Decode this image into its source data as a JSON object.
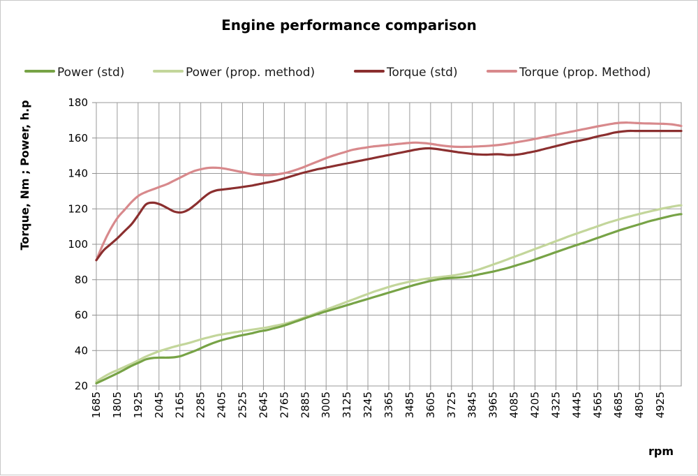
{
  "chart_data": {
    "type": "line",
    "title": "Engine performance comparison",
    "xlabel": "rpm",
    "ylabel": "Torque, Nm ; Power, h.p",
    "ylim": [
      20,
      180
    ],
    "yticks": [
      20,
      40,
      60,
      80,
      100,
      120,
      140,
      160,
      180
    ],
    "grid": true,
    "legend_position": "top",
    "x": [
      1685,
      1725,
      1765,
      1805,
      1845,
      1885,
      1925,
      1965,
      2005,
      2045,
      2085,
      2125,
      2165,
      2205,
      2245,
      2285,
      2325,
      2365,
      2405,
      2445,
      2485,
      2525,
      2565,
      2605,
      2645,
      2685,
      2725,
      2765,
      2805,
      2845,
      2885,
      2925,
      2965,
      3005,
      3045,
      3085,
      3125,
      3165,
      3205,
      3245,
      3285,
      3325,
      3365,
      3405,
      3445,
      3485,
      3525,
      3565,
      3605,
      3645,
      3685,
      3725,
      3765,
      3805,
      3845,
      3885,
      3925,
      3965,
      4005,
      4045,
      4085,
      4125,
      4165,
      4205,
      4245,
      4285,
      4325,
      4365,
      4405,
      4445,
      4485,
      4525,
      4565,
      4605,
      4645,
      4685,
      4725,
      4765,
      4805,
      4845,
      4885,
      4925,
      4965,
      4985
    ],
    "x_tick_labels": [
      "1685",
      "1805",
      "1925",
      "2045",
      "2165",
      "2285",
      "2405",
      "2525",
      "2645",
      "2765",
      "2885",
      "3005",
      "3125",
      "3245",
      "3365",
      "3485",
      "3605",
      "3725",
      "3845",
      "3965",
      "4085",
      "4205",
      "4325",
      "4445",
      "4565",
      "4685",
      "4805",
      "4925"
    ],
    "series": [
      {
        "name": "Power (std)",
        "color": "#77a346",
        "values": [
          21.5,
          23.4,
          25.3,
          27.2,
          29.3,
          31.4,
          33.2,
          35.0,
          35.8,
          36.0,
          36.0,
          36.2,
          37.0,
          38.5,
          40.0,
          41.8,
          43.5,
          45.0,
          46.2,
          47.2,
          48.2,
          49.0,
          49.8,
          50.8,
          51.5,
          52.5,
          53.5,
          54.8,
          56.2,
          57.6,
          59.0,
          60.3,
          61.6,
          62.8,
          64.0,
          65.2,
          66.4,
          67.6,
          68.8,
          70.0,
          71.2,
          72.4,
          73.6,
          74.8,
          76.0,
          77.2,
          78.2,
          79.2,
          80.0,
          80.6,
          81.0,
          81.2,
          81.6,
          82.2,
          83.0,
          83.8,
          84.6,
          85.6,
          86.6,
          87.8,
          89.0,
          90.2,
          91.6,
          93.0,
          94.4,
          95.8,
          97.2,
          98.6,
          99.9,
          101.2,
          102.6,
          104.0,
          105.4,
          106.8,
          108.2,
          109.4,
          110.6,
          111.8,
          113.0,
          114.0,
          115.0,
          116.0,
          116.8,
          117.0
        ]
      },
      {
        "name": "Power (prop. method)",
        "color": "#c3d69b",
        "values": [
          22.5,
          25.0,
          27.2,
          29.0,
          30.8,
          32.6,
          34.6,
          36.6,
          38.3,
          39.8,
          41.0,
          42.2,
          43.2,
          44.2,
          45.4,
          46.6,
          47.6,
          48.6,
          49.3,
          50.0,
          50.6,
          51.2,
          51.8,
          52.4,
          53.0,
          53.8,
          54.6,
          55.6,
          56.8,
          58.2,
          59.6,
          61.0,
          62.5,
          64.0,
          65.5,
          67.0,
          68.5,
          70.0,
          71.5,
          73.0,
          74.3,
          75.6,
          76.8,
          77.8,
          78.7,
          79.5,
          80.2,
          80.8,
          81.3,
          81.7,
          82.2,
          82.8,
          83.6,
          84.6,
          85.8,
          87.2,
          88.6,
          90.0,
          91.5,
          93.0,
          94.5,
          96.0,
          97.5,
          99.0,
          100.5,
          102.0,
          103.5,
          105.0,
          106.4,
          107.8,
          109.2,
          110.6,
          112.0,
          113.2,
          114.4,
          115.5,
          116.5,
          117.5,
          118.5,
          119.4,
          120.3,
          121.1,
          121.8,
          122.0
        ]
      },
      {
        "name": "Torque (std)",
        "color": "#8b2f2f",
        "values": [
          91.0,
          96.5,
          100.0,
          103.5,
          107.5,
          111.5,
          117.0,
          122.5,
          123.5,
          122.5,
          120.5,
          118.5,
          118.0,
          119.5,
          122.5,
          126.0,
          129.0,
          130.5,
          131.0,
          131.5,
          132.0,
          132.6,
          133.2,
          134.0,
          134.8,
          135.6,
          136.6,
          137.8,
          139.0,
          140.2,
          141.2,
          142.2,
          143.0,
          143.8,
          144.6,
          145.4,
          146.2,
          147.0,
          147.8,
          148.6,
          149.4,
          150.2,
          151.0,
          151.8,
          152.6,
          153.4,
          154.0,
          154.2,
          153.8,
          153.2,
          152.6,
          152.0,
          151.5,
          151.0,
          150.7,
          150.6,
          150.8,
          150.8,
          150.4,
          150.5,
          151.0,
          151.8,
          152.6,
          153.6,
          154.6,
          155.6,
          156.6,
          157.6,
          158.4,
          159.2,
          160.2,
          161.2,
          162.0,
          163.0,
          163.6,
          164.0,
          164.0,
          164.0,
          164.0,
          164.0,
          164.0,
          164.0,
          164.0,
          164.0
        ]
      },
      {
        "name": "Torque (prop. Method)",
        "color": "#d8898c",
        "values": [
          91.0,
          100.5,
          108.5,
          115.0,
          119.5,
          124.0,
          127.5,
          129.5,
          131.0,
          132.5,
          134.0,
          136.0,
          138.0,
          140.0,
          141.6,
          142.6,
          143.2,
          143.2,
          142.8,
          142.0,
          141.2,
          140.4,
          139.6,
          139.2,
          139.0,
          139.2,
          139.8,
          140.6,
          141.8,
          143.2,
          144.8,
          146.4,
          148.0,
          149.5,
          150.8,
          152.0,
          153.2,
          154.0,
          154.6,
          155.2,
          155.6,
          156.0,
          156.4,
          156.8,
          157.2,
          157.4,
          157.2,
          156.8,
          156.2,
          155.6,
          155.2,
          155.0,
          155.0,
          155.1,
          155.3,
          155.5,
          155.8,
          156.2,
          156.8,
          157.4,
          158.1,
          158.8,
          159.6,
          160.4,
          161.2,
          162.0,
          162.8,
          163.6,
          164.4,
          165.2,
          166.0,
          166.8,
          167.5,
          168.2,
          168.6,
          168.7,
          168.5,
          168.3,
          168.2,
          168.1,
          168.0,
          167.8,
          167.2,
          166.8
        ]
      }
    ]
  }
}
